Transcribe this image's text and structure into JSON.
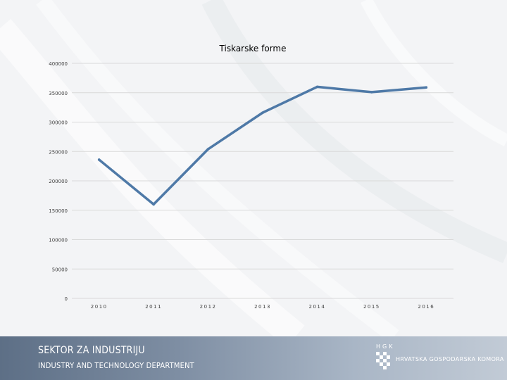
{
  "chart_data": {
    "type": "line",
    "title": "Tiskarske forme",
    "xlabel": "",
    "ylabel": "",
    "categories": [
      "2010",
      "2011",
      "2012",
      "2013",
      "2014",
      "2015",
      "2016"
    ],
    "series": [
      {
        "values": [
          236000,
          160000,
          254000,
          316000,
          360000,
          351000,
          359000
        ]
      }
    ],
    "ylim": [
      0,
      400000
    ],
    "yticks": [
      0,
      50000,
      100000,
      150000,
      200000,
      250000,
      300000,
      350000,
      400000
    ],
    "grid": true,
    "legend": "none",
    "colors": {
      "line": "#4e79a7",
      "grid": "#d9d9d9",
      "text": "#404040"
    }
  },
  "footer": {
    "title": "SEKTOR ZA INDUSTRIJU",
    "subtitle": "INDUSTRY AND TECHNOLOGY DEPARTMENT",
    "logo_letters": "HGK",
    "logo_name": "HRVATSKA GOSPODARSKA KOMORA"
  }
}
